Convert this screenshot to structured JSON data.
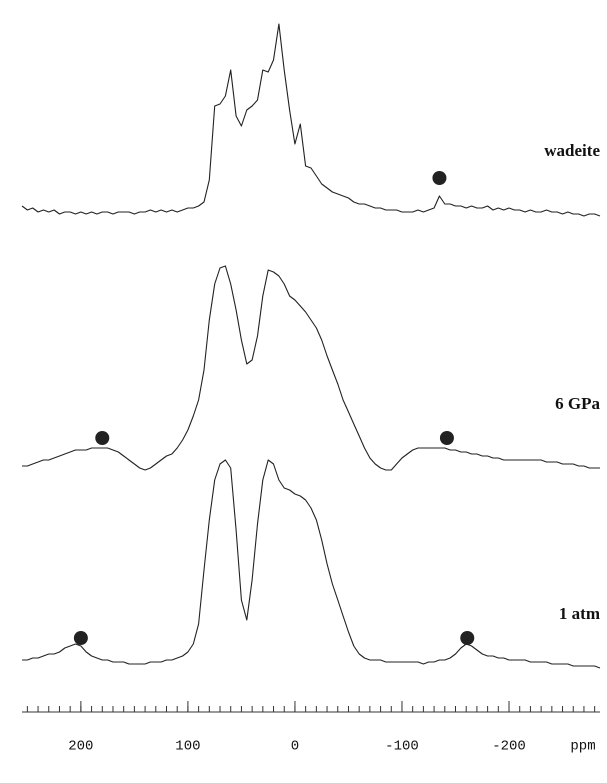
{
  "chart_data": {
    "type": "line",
    "xlabel": "ppm",
    "xlim": [
      255,
      -285
    ],
    "ylim": [
      0,
      110
    ],
    "xticks": [
      200,
      100,
      0,
      -100,
      -200
    ],
    "xminorticks": [
      250,
      240,
      230,
      220,
      210,
      200,
      190,
      180,
      170,
      160,
      150,
      140,
      130,
      120,
      110,
      100,
      90,
      80,
      70,
      60,
      50,
      40,
      30,
      20,
      10,
      0,
      -10,
      -20,
      -30,
      -40,
      -50,
      -60,
      -70,
      -80,
      -90,
      -100,
      -110,
      -120,
      -130,
      -140,
      -150,
      -160,
      -170,
      -180,
      -190,
      -200,
      -210,
      -220,
      -230,
      -240,
      -250,
      -260,
      -270,
      -280
    ],
    "x": [
      255,
      250,
      245,
      240,
      235,
      230,
      225,
      220,
      215,
      210,
      205,
      200,
      195,
      190,
      185,
      180,
      175,
      170,
      165,
      160,
      155,
      150,
      145,
      140,
      135,
      130,
      125,
      120,
      115,
      110,
      105,
      100,
      95,
      90,
      85,
      80,
      75,
      70,
      65,
      60,
      55,
      50,
      45,
      40,
      35,
      30,
      25,
      20,
      15,
      10,
      5,
      0,
      -5,
      -10,
      -15,
      -20,
      -25,
      -30,
      -35,
      -40,
      -45,
      -50,
      -55,
      -60,
      -65,
      -70,
      -75,
      -80,
      -85,
      -90,
      -95,
      -100,
      -105,
      -110,
      -115,
      -120,
      -125,
      -130,
      -135,
      -140,
      -145,
      -150,
      -155,
      -160,
      -165,
      -170,
      -175,
      -180,
      -185,
      -190,
      -195,
      -200,
      -205,
      -210,
      -215,
      -220,
      -225,
      -230,
      -235,
      -240,
      -245,
      -250,
      -255,
      -260,
      -265,
      -270,
      -275,
      -280,
      -285
    ],
    "series": [
      {
        "name": "wadeite",
        "color": "#222222",
        "markers": [
          -135
        ],
        "values": [
          7,
          5,
          6,
          4,
          5,
          4,
          5,
          3,
          4,
          4,
          3,
          4,
          3,
          4,
          3,
          4,
          4,
          3,
          4,
          4,
          4,
          3,
          4,
          4,
          5,
          4,
          5,
          4,
          5,
          4,
          5,
          6,
          6,
          7,
          9,
          20,
          57,
          58,
          62,
          75,
          52,
          47,
          55,
          57,
          60,
          75,
          74,
          80,
          98,
          75,
          55,
          38,
          48,
          27,
          26,
          22,
          18,
          16,
          14,
          13,
          12,
          11,
          9,
          8,
          8,
          7,
          6,
          6,
          5,
          5,
          5,
          4,
          4,
          4,
          5,
          4,
          5,
          6,
          12,
          8,
          8,
          7,
          7,
          6,
          7,
          6,
          6,
          7,
          5,
          6,
          5,
          6,
          5,
          5,
          4,
          5,
          4,
          4,
          5,
          4,
          4,
          3,
          4,
          3,
          3,
          2,
          3,
          3,
          2
        ]
      },
      {
        "name": "6 GPa",
        "color": "#222222",
        "markers": [
          180,
          -142
        ],
        "values": [
          7,
          7,
          8,
          9,
          10,
          10,
          11,
          12,
          13,
          14,
          15,
          15,
          15,
          16,
          16,
          16,
          16,
          15,
          14,
          12,
          10,
          8,
          6,
          5,
          6,
          8,
          10,
          12,
          13,
          16,
          20,
          25,
          32,
          40,
          55,
          80,
          98,
          106,
          107,
          98,
          85,
          70,
          58,
          60,
          72,
          92,
          105,
          104,
          102,
          98,
          92,
          90,
          87,
          84,
          80,
          76,
          70,
          62,
          55,
          48,
          40,
          34,
          28,
          22,
          16,
          11,
          8,
          6,
          5,
          5,
          8,
          11,
          13,
          15,
          16,
          16,
          16,
          16,
          16,
          16,
          15,
          15,
          14,
          14,
          13,
          13,
          12,
          12,
          11,
          11,
          10,
          10,
          10,
          10,
          10,
          10,
          10,
          10,
          9,
          9,
          9,
          8,
          8,
          8,
          7,
          7,
          6,
          6,
          6
        ]
      },
      {
        "name": "1 atm",
        "color": "#222222",
        "markers": [
          200,
          -161
        ],
        "values": [
          10,
          10,
          11,
          11,
          12,
          13,
          13,
          14,
          16,
          17,
          18,
          17,
          14,
          12,
          11,
          10,
          10,
          9,
          9,
          9,
          8,
          8,
          8,
          8,
          9,
          9,
          9,
          10,
          10,
          11,
          12,
          14,
          18,
          28,
          55,
          80,
          100,
          108,
          110,
          106,
          75,
          40,
          30,
          50,
          78,
          100,
          110,
          108,
          100,
          96,
          95,
          93,
          92,
          90,
          86,
          80,
          70,
          58,
          48,
          40,
          32,
          24,
          17,
          13,
          11,
          10,
          10,
          10,
          9,
          9,
          9,
          9,
          9,
          9,
          9,
          8,
          9,
          9,
          10,
          10,
          11,
          13,
          16,
          18,
          17,
          15,
          13,
          12,
          12,
          11,
          11,
          10,
          10,
          10,
          10,
          9,
          9,
          9,
          9,
          8,
          8,
          8,
          8,
          7,
          7,
          7,
          7,
          7,
          6
        ]
      }
    ]
  }
}
